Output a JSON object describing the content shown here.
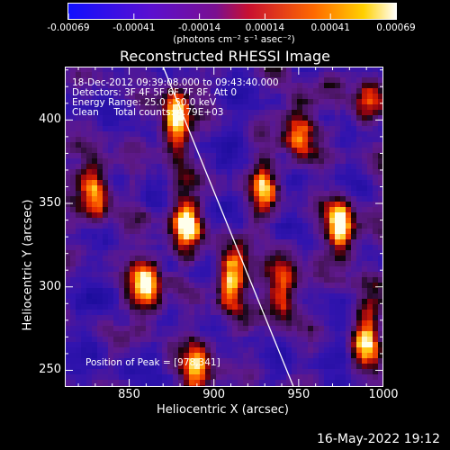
{
  "chart_data": {
    "type": "heatmap",
    "title": "Reconstructed RHESSI Image",
    "xlabel": "Heliocentric X (arcsec)",
    "ylabel": "Heliocentric Y (arcsec)",
    "xlim": [
      812,
      1000
    ],
    "ylim": [
      240,
      432
    ],
    "x_ticks": [
      850,
      900,
      950,
      1000
    ],
    "y_ticks": [
      250,
      300,
      350,
      400
    ],
    "colorbar": {
      "ticks": [
        "-0.00069",
        "-0.00041",
        "-0.00014",
        "0.00014",
        "0.00041",
        "0.00069"
      ],
      "units": "(photons cm⁻² s⁻¹ asec⁻²)",
      "colors": [
        "#1010ff",
        "#6a10c8",
        "#8a1080",
        "#ff2a00",
        "#ff9a00",
        "#ffffff"
      ]
    },
    "info_lines": [
      "18-Dec-2012 09:39:08.000 to 09:43:40.000",
      "Detectors: 3F 4F 5F 6F 7F 8F, Att 0",
      "Energy Range: 25.0 - 50.0 keV",
      "Clean     Total counts: 4.79E+03"
    ],
    "peak_label": "Position of Peak = [978,341]",
    "limb_line": [
      [
        870,
        432
      ],
      [
        947,
        240
      ]
    ],
    "bright_sources": [
      {
        "x": 877,
        "y": 400,
        "amp": 0.95
      },
      {
        "x": 883,
        "y": 340,
        "amp": 0.85
      },
      {
        "x": 860,
        "y": 300,
        "amp": 0.9
      },
      {
        "x": 910,
        "y": 305,
        "amp": 0.95
      },
      {
        "x": 940,
        "y": 300,
        "amp": 0.85
      },
      {
        "x": 975,
        "y": 335,
        "amp": 1.0
      },
      {
        "x": 950,
        "y": 395,
        "amp": 0.75
      },
      {
        "x": 830,
        "y": 360,
        "amp": 0.8
      },
      {
        "x": 890,
        "y": 250,
        "amp": 0.8
      },
      {
        "x": 990,
        "y": 270,
        "amp": 0.8
      },
      {
        "x": 930,
        "y": 360,
        "amp": 0.6
      },
      {
        "x": 990,
        "y": 410,
        "amp": 0.6
      }
    ]
  },
  "footer": {
    "timestamp": "16-May-2022 19:12"
  }
}
